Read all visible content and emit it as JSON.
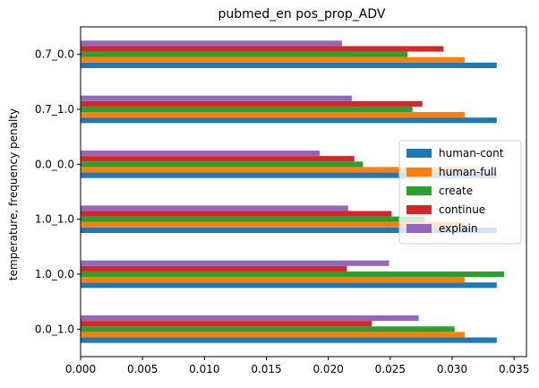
{
  "chart_data": {
    "type": "bar",
    "orientation": "horizontal",
    "title": "pubmed_en pos_prop_ADV",
    "xlabel": "",
    "ylabel": "temperature, frequency penalty",
    "categories": [
      "0.0_1.0",
      "1.0_0.0",
      "1.0_1.0",
      "0.0_0.0",
      "0.7_1.0",
      "0.7_0.0"
    ],
    "xlim": [
      0,
      0.036
    ],
    "xticks": [
      "0.000",
      "0.005",
      "0.010",
      "0.015",
      "0.020",
      "0.025",
      "0.030",
      "0.035"
    ],
    "grid": false,
    "legend_position": "center-right",
    "series": [
      {
        "name": "human-cont",
        "color": "#1f77b4",
        "values": [
          0.0336,
          0.0336,
          0.0336,
          0.0336,
          0.0336,
          0.0336
        ]
      },
      {
        "name": "human-full",
        "color": "#ff7f0e",
        "values": [
          0.031,
          0.031,
          0.031,
          0.031,
          0.031,
          0.031
        ]
      },
      {
        "name": "create",
        "color": "#2ca02c",
        "values": [
          0.0302,
          0.0342,
          0.0278,
          0.0228,
          0.0268,
          0.0264
        ]
      },
      {
        "name": "continue",
        "color": "#d62728",
        "values": [
          0.0235,
          0.0215,
          0.0251,
          0.0221,
          0.0276,
          0.0293
        ]
      },
      {
        "name": "explain",
        "color": "#9467bd",
        "values": [
          0.0273,
          0.0249,
          0.0216,
          0.0193,
          0.0219,
          0.0211
        ]
      }
    ]
  }
}
